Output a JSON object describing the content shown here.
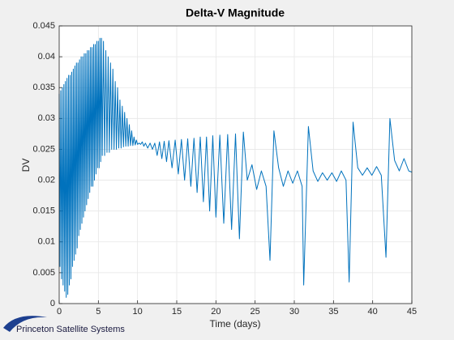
{
  "chart_data": {
    "type": "line",
    "title": "Delta-V Magnitude",
    "x_label": "Time (days)",
    "y_label": "DV",
    "color": "#0072bd",
    "grid": true,
    "xlim": [
      0,
      45
    ],
    "xticks": [
      0,
      5,
      10,
      15,
      20,
      25,
      30,
      35,
      40,
      45
    ],
    "ylim": [
      0,
      0.045
    ],
    "yticks": [
      0,
      0.005,
      0.01,
      0.015,
      0.02,
      0.025,
      0.03,
      0.035,
      0.04,
      0.045
    ],
    "x": [
      0,
      0.1,
      0.2,
      0.3,
      0.4,
      0.5,
      0.6,
      0.7,
      0.8,
      0.9,
      1.0,
      1.1,
      1.2,
      1.3,
      1.4,
      1.5,
      1.6,
      1.7,
      1.8,
      1.9,
      2.0,
      2.1,
      2.2,
      2.3,
      2.4,
      2.5,
      2.6,
      2.7,
      2.8,
      2.9,
      3.0,
      3.1,
      3.2,
      3.3,
      3.4,
      3.5,
      3.6,
      3.7,
      3.8,
      3.9,
      4.0,
      4.1,
      4.2,
      4.3,
      4.4,
      4.5,
      4.6,
      4.7,
      4.8,
      4.9,
      5.0,
      5.1,
      5.2,
      5.3,
      5.4,
      5.5,
      5.65,
      5.8,
      5.95,
      6.1,
      6.25,
      6.4,
      6.55,
      6.7,
      6.85,
      7.0,
      7.15,
      7.3,
      7.45,
      7.6,
      7.75,
      7.9,
      8.05,
      8.2,
      8.35,
      8.5,
      8.65,
      8.8,
      8.95,
      9.1,
      9.25,
      9.4,
      9.55,
      9.7,
      9.85,
      10.0,
      10.2,
      10.4,
      10.6,
      10.8,
      11.0,
      11.3,
      11.6,
      11.9,
      12.2,
      12.5,
      12.8,
      13.1,
      13.4,
      13.7,
      14.0,
      14.4,
      14.8,
      15.2,
      15.6,
      16.0,
      16.4,
      16.8,
      17.2,
      17.6,
      18.0,
      18.4,
      18.8,
      19.2,
      19.6,
      20.0,
      20.5,
      21.0,
      21.5,
      22.0,
      22.5,
      23.0,
      23.5,
      24.0,
      24.6,
      25.2,
      25.8,
      26.4,
      26.9,
      27.4,
      28.0,
      28.6,
      29.2,
      29.8,
      30.4,
      31.0,
      31.2,
      31.8,
      32.4,
      33.0,
      33.6,
      34.2,
      34.8,
      35.4,
      36.0,
      36.6,
      37.0,
      37.5,
      38.1,
      38.7,
      39.3,
      39.9,
      40.5,
      41.1,
      41.7,
      42.2,
      42.8,
      43.4,
      44.0,
      44.6,
      45
    ],
    "values": [
      0.034,
      0.006,
      0.0345,
      0.004,
      0.035,
      0.003,
      0.0355,
      0.002,
      0.036,
      0.001,
      0.0365,
      0.0015,
      0.037,
      0.003,
      0.037,
      0.004,
      0.0375,
      0.006,
      0.038,
      0.007,
      0.0385,
      0.008,
      0.039,
      0.009,
      0.039,
      0.011,
      0.0395,
      0.012,
      0.04,
      0.013,
      0.04,
      0.014,
      0.0405,
      0.015,
      0.0405,
      0.016,
      0.041,
      0.017,
      0.041,
      0.018,
      0.0415,
      0.019,
      0.0415,
      0.019,
      0.042,
      0.02,
      0.042,
      0.021,
      0.0425,
      0.022,
      0.0425,
      0.022,
      0.043,
      0.023,
      0.043,
      0.024,
      0.0425,
      0.024,
      0.041,
      0.0245,
      0.04,
      0.0245,
      0.039,
      0.025,
      0.038,
      0.025,
      0.036,
      0.025,
      0.035,
      0.0252,
      0.033,
      0.0252,
      0.032,
      0.0254,
      0.031,
      0.0255,
      0.03,
      0.0255,
      0.029,
      0.0256,
      0.028,
      0.0256,
      0.027,
      0.0257,
      0.0265,
      0.0258,
      0.026,
      0.0258,
      0.0262,
      0.0255,
      0.026,
      0.0252,
      0.026,
      0.025,
      0.026,
      0.024,
      0.0262,
      0.0235,
      0.0263,
      0.023,
      0.0264,
      0.022,
      0.0265,
      0.021,
      0.0266,
      0.02,
      0.0267,
      0.019,
      0.0268,
      0.018,
      0.027,
      0.0165,
      0.027,
      0.015,
      0.0272,
      0.014,
      0.0273,
      0.013,
      0.0274,
      0.012,
      0.0275,
      0.0105,
      0.0278,
      0.02,
      0.0225,
      0.0185,
      0.0215,
      0.019,
      0.007,
      0.028,
      0.022,
      0.019,
      0.0215,
      0.0195,
      0.0215,
      0.019,
      0.003,
      0.0287,
      0.0215,
      0.0198,
      0.0212,
      0.02,
      0.0212,
      0.0198,
      0.0215,
      0.02,
      0.0035,
      0.0294,
      0.022,
      0.0208,
      0.022,
      0.0208,
      0.0222,
      0.0208,
      0.0075,
      0.03,
      0.0232,
      0.0215,
      0.0235,
      0.0215,
      0.0213
    ]
  },
  "logo_text": "Princeton Satellite Systems"
}
